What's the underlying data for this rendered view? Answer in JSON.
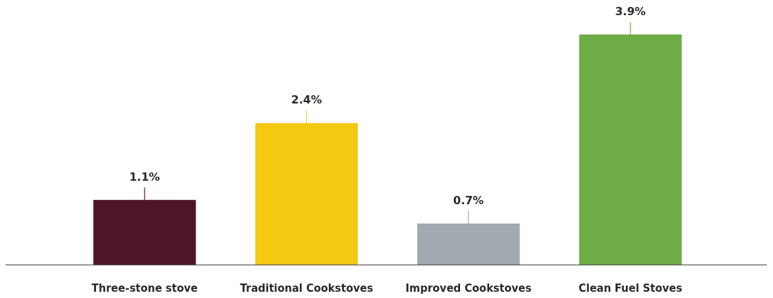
{
  "chart_data": {
    "type": "bar",
    "categories": [
      "Three-stone stove",
      "Traditional Cookstoves",
      "Improved Cookstoves",
      "Clean Fuel Stoves"
    ],
    "values": [
      1.1,
      2.4,
      0.7,
      3.9
    ],
    "colors": [
      "#50142a",
      "#f5c811",
      "#a3a9b1",
      "#6dac47"
    ],
    "value_labels": [
      "1.1%",
      "2.4%",
      "0.7%",
      "3.9%"
    ]
  }
}
